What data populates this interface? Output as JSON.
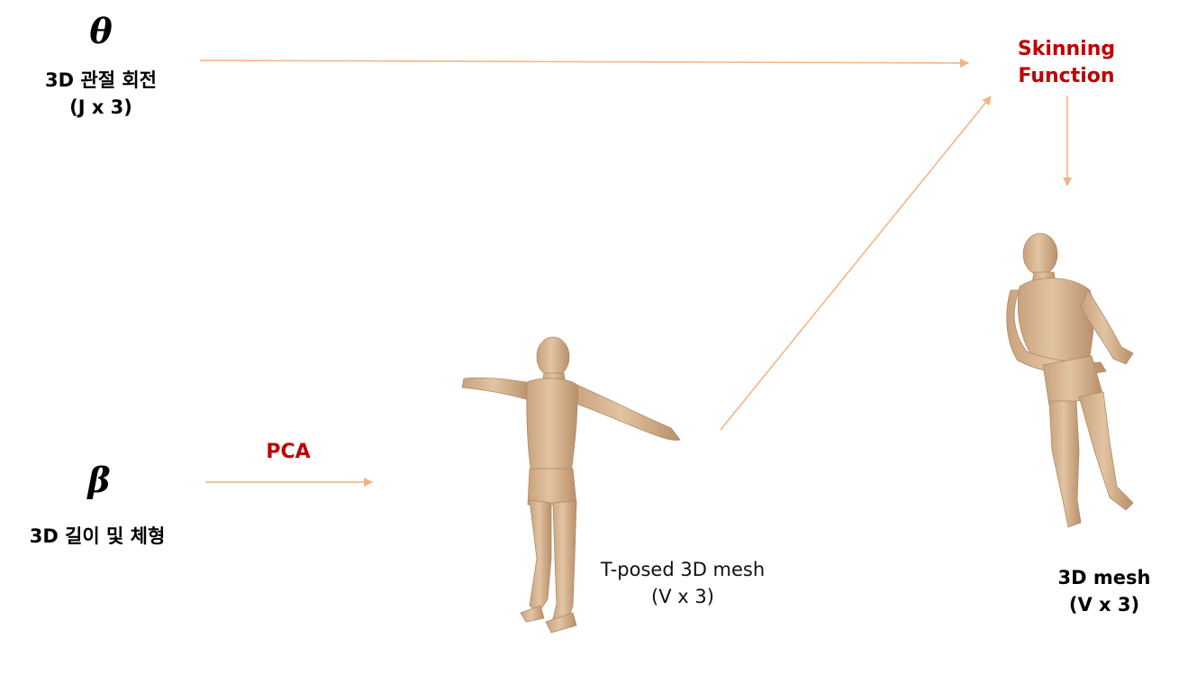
{
  "theta": {
    "symbol": "θ",
    "label_line1": "3D 관절 회전",
    "label_line2": "(J x 3)"
  },
  "beta": {
    "symbol": "β",
    "label": "3D 길이 및 체형"
  },
  "pca": {
    "label": "PCA"
  },
  "skinning": {
    "label_line1": "Skinning",
    "label_line2": "Function"
  },
  "tposed_mesh": {
    "label_line1": "T-posed 3D mesh",
    "label_line2": "(V x 3)"
  },
  "output_mesh": {
    "label_line1": "3D mesh",
    "label_line2": "(V x 3)"
  },
  "colors": {
    "arrow": "#f4b183",
    "accent_text": "#c00000",
    "skin": "#d9b591"
  }
}
